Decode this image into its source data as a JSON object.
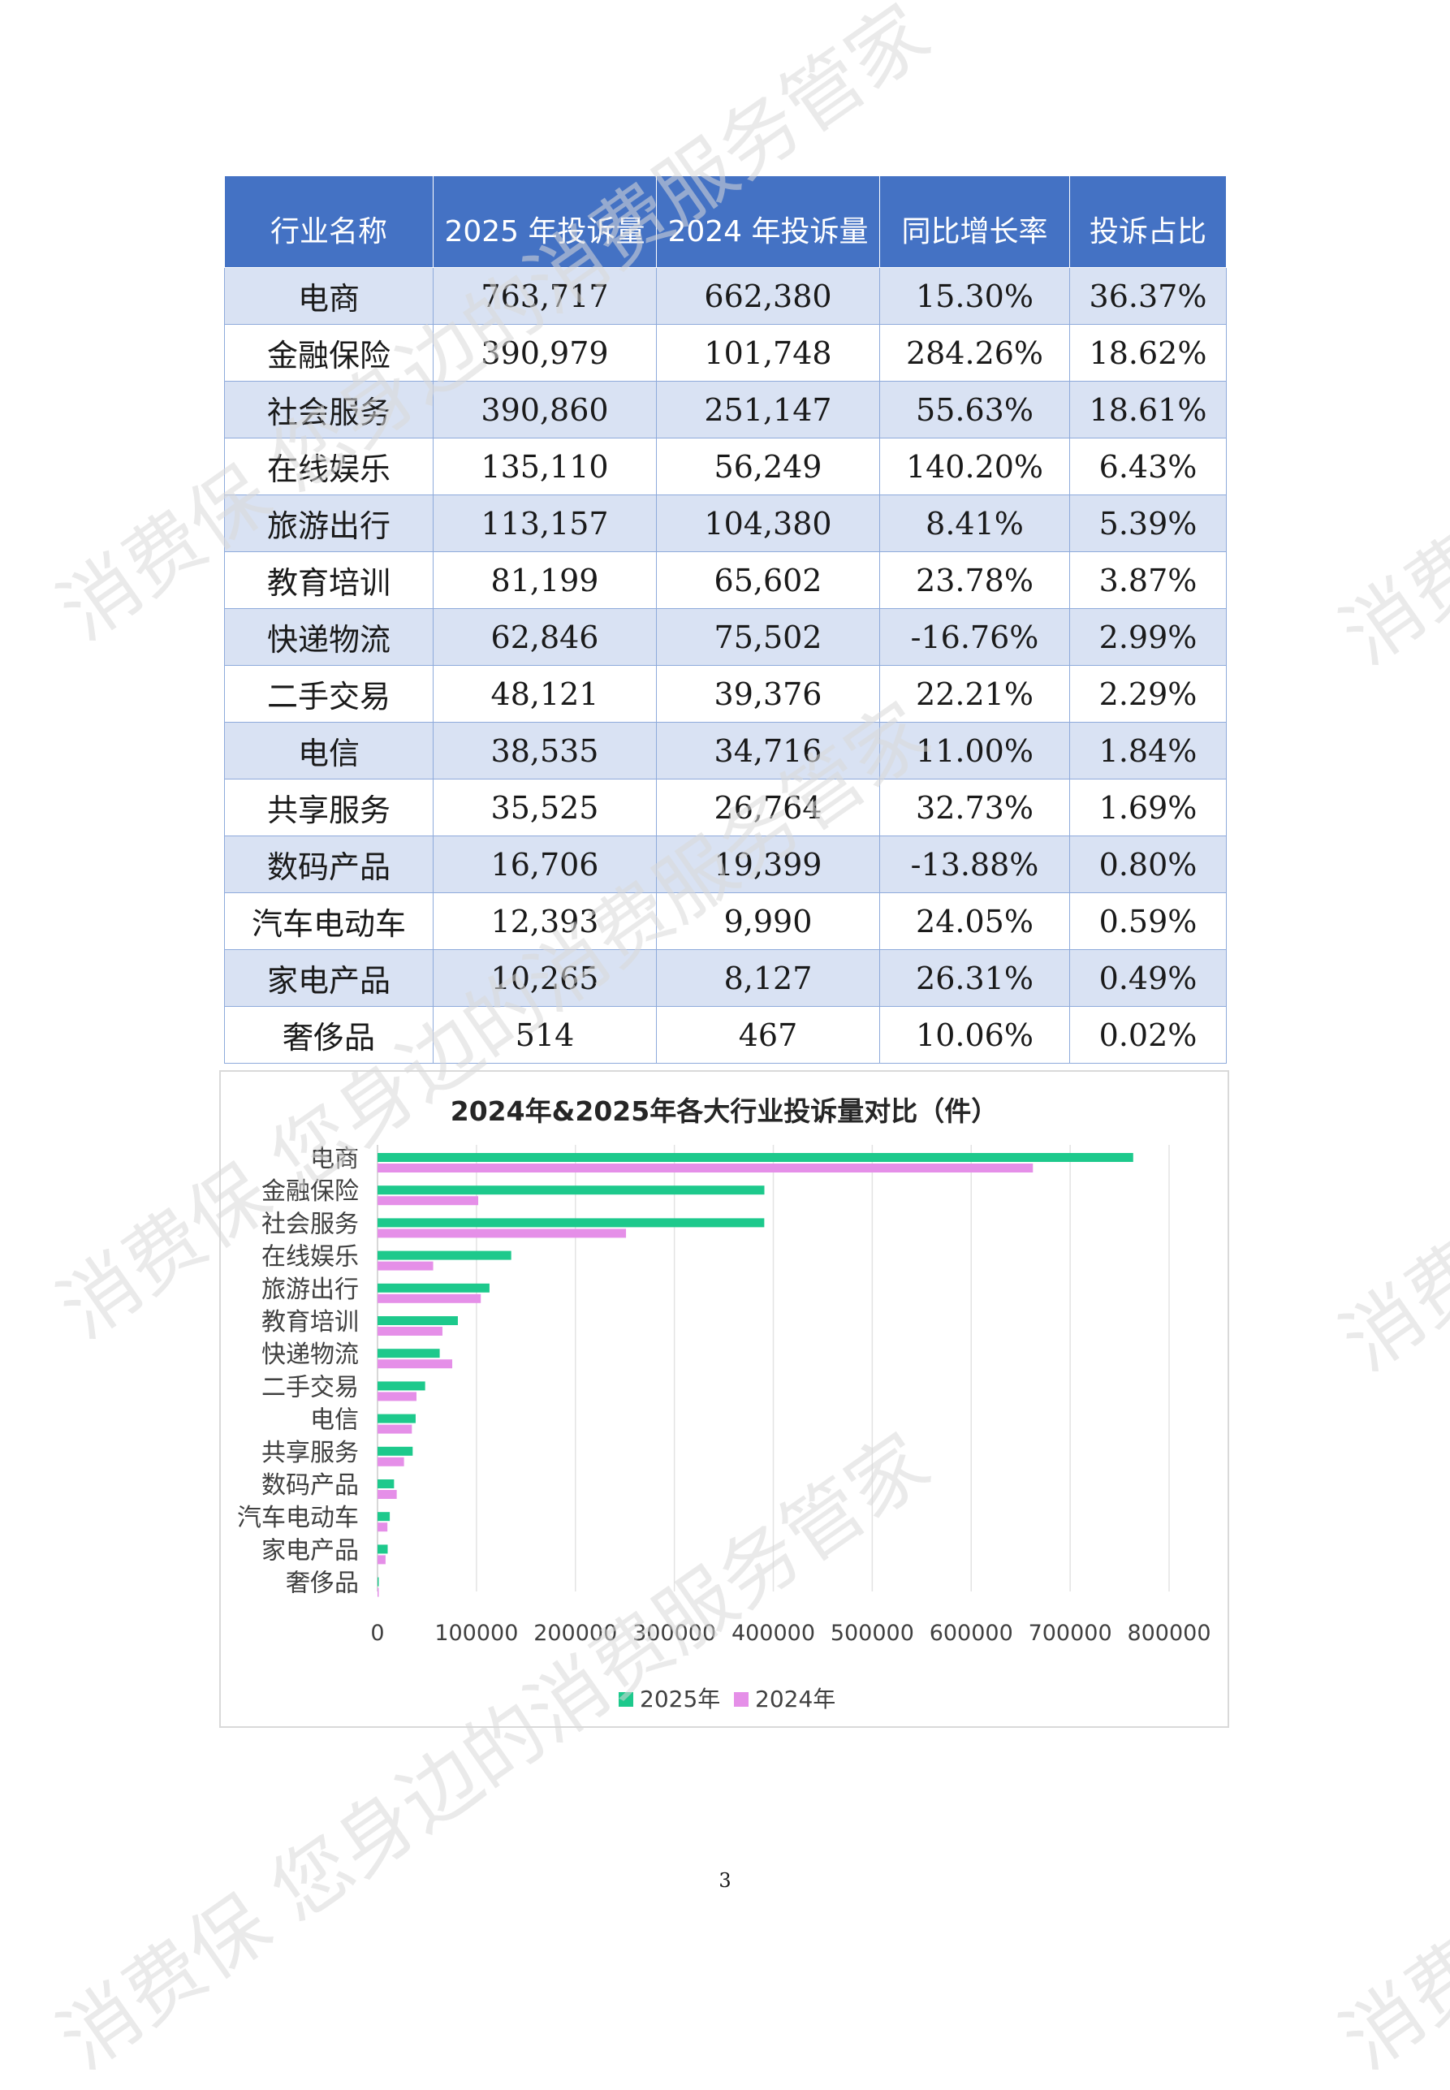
{
  "table": {
    "headers": [
      "行业名称",
      "2025 年投诉量",
      "2024 年投诉量",
      "同比增长率",
      "投诉占比"
    ],
    "rows": [
      [
        "电商",
        "763,717",
        "662,380",
        "15.30%",
        "36.37%"
      ],
      [
        "金融保险",
        "390,979",
        "101,748",
        "284.26%",
        "18.62%"
      ],
      [
        "社会服务",
        "390,860",
        "251,147",
        "55.63%",
        "18.61%"
      ],
      [
        "在线娱乐",
        "135,110",
        "56,249",
        "140.20%",
        "6.43%"
      ],
      [
        "旅游出行",
        "113,157",
        "104,380",
        "8.41%",
        "5.39%"
      ],
      [
        "教育培训",
        "81,199",
        "65,602",
        "23.78%",
        "3.87%"
      ],
      [
        "快递物流",
        "62,846",
        "75,502",
        "-16.76%",
        "2.99%"
      ],
      [
        "二手交易",
        "48,121",
        "39,376",
        "22.21%",
        "2.29%"
      ],
      [
        "电信",
        "38,535",
        "34,716",
        "11.00%",
        "1.84%"
      ],
      [
        "共享服务",
        "35,525",
        "26,764",
        "32.73%",
        "1.69%"
      ],
      [
        "数码产品",
        "16,706",
        "19,399",
        "-13.88%",
        "0.80%"
      ],
      [
        "汽车电动车",
        "12,393",
        "9,990",
        "24.05%",
        "0.59%"
      ],
      [
        "家电产品",
        "10,265",
        "8,127",
        "26.31%",
        "0.49%"
      ],
      [
        "奢侈品",
        "514",
        "467",
        "10.06%",
        "0.02%"
      ]
    ]
  },
  "chart_data": {
    "type": "bar",
    "orientation": "horizontal",
    "title": "2024年&2025年各大行业投诉量对比（件）",
    "categories": [
      "电商",
      "金融保险",
      "社会服务",
      "在线娱乐",
      "旅游出行",
      "教育培训",
      "快递物流",
      "二手交易",
      "电信",
      "共享服务",
      "数码产品",
      "汽车电动车",
      "家电产品",
      "奢侈品"
    ],
    "series": [
      {
        "name": "2025年",
        "color": "#1DC98C",
        "values": [
          763717,
          390979,
          390860,
          135110,
          113157,
          81199,
          62846,
          48121,
          38535,
          35525,
          16706,
          12393,
          10265,
          514
        ]
      },
      {
        "name": "2024年",
        "color": "#E58FE8",
        "values": [
          662380,
          101748,
          251147,
          56249,
          104380,
          65602,
          75502,
          39376,
          34716,
          26764,
          19399,
          9990,
          8127,
          467
        ]
      }
    ],
    "xlim": [
      0,
      800000
    ],
    "xticks": [
      0,
      100000,
      200000,
      300000,
      400000,
      500000,
      600000,
      700000,
      800000
    ],
    "grid": true,
    "legend": "bottom"
  },
  "page_number": "3",
  "watermark": {
    "text_full": "消费保 您身边的消费服务管家",
    "text_short": "消费保"
  }
}
